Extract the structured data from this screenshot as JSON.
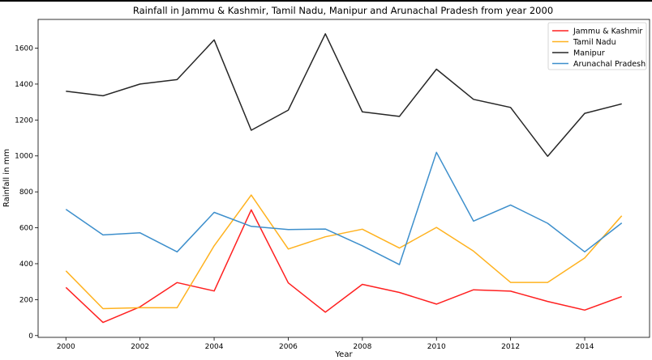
{
  "chart_data": {
    "type": "line",
    "title": "Rainfall in Jammu & Kashmir, Tamil Nadu, Manipur and Arunachal Pradesh from year 2000",
    "xlabel": "Year",
    "ylabel": "Rainfall in mm",
    "x": [
      2000,
      2001,
      2002,
      2003,
      2004,
      2005,
      2006,
      2007,
      2008,
      2009,
      2010,
      2011,
      2012,
      2013,
      2014,
      2015
    ],
    "xlim": [
      1999.25,
      2015.75
    ],
    "ylim": [
      -10,
      1760
    ],
    "xticks": [
      "2000",
      "2002",
      "2004",
      "2006",
      "2008",
      "2010",
      "2012",
      "2014"
    ],
    "yticks": [
      "0",
      "200",
      "400",
      "600",
      "800",
      "1000",
      "1200",
      "1400",
      "1600"
    ],
    "grid": false,
    "legend_position": "top-right",
    "series": [
      {
        "name": "Jammu & Kashmir",
        "color": "#ff2020",
        "values": [
          268,
          73,
          160,
          295,
          248,
          700,
          293,
          130,
          285,
          240,
          175,
          255,
          247,
          190,
          142,
          217
        ]
      },
      {
        "name": "Tamil Nadu",
        "color": "#ffb21f",
        "values": [
          360,
          150,
          155,
          155,
          500,
          782,
          482,
          550,
          592,
          487,
          602,
          470,
          296,
          296,
          432,
          667
        ]
      },
      {
        "name": "Manipur",
        "color": "#262626",
        "values": [
          1360,
          1335,
          1400,
          1425,
          1646,
          1143,
          1255,
          1680,
          1245,
          1220,
          1483,
          1315,
          1270,
          998,
          1237,
          1290
        ]
      },
      {
        "name": "Arunachal Pradesh",
        "color": "#3d8fcc",
        "values": [
          703,
          560,
          572,
          466,
          686,
          608,
          590,
          593,
          500,
          395,
          1020,
          637,
          727,
          625,
          466,
          627
        ]
      }
    ]
  }
}
